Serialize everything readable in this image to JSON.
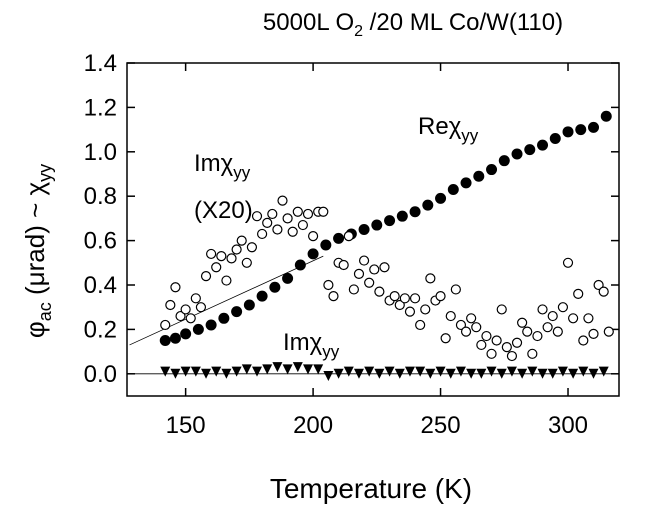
{
  "chart_data": {
    "type": "scatter",
    "title": {
      "main": "5000L O",
      "sub": "2",
      "rest": " /20 ML Co/W(110)"
    },
    "xlabel": "Temperature (K)",
    "ylabel": {
      "phi": "φ",
      "phi_sub": "ac",
      "mid": " (μrad) ~ χ",
      "chi_sub": "yy"
    },
    "xlim": [
      127,
      320
    ],
    "ylim": [
      -0.1,
      1.4
    ],
    "xticks": [
      150,
      200,
      250,
      300
    ],
    "yticks": [
      0.0,
      0.2,
      0.4,
      0.6,
      0.8,
      1.0,
      1.2,
      1.4
    ],
    "xtick_labels": [
      "150",
      "200",
      "250",
      "300"
    ],
    "ytick_labels": [
      "0.0",
      "0.2",
      "0.4",
      "0.6",
      "0.8",
      "1.0",
      "1.2",
      "1.4"
    ],
    "annotations": {
      "re": {
        "prefix": "Re",
        "chi": "χ",
        "sub": "yy"
      },
      "im_x20": {
        "prefix": "Im",
        "chi": "χ",
        "sub": "yy",
        "line2": "(X20)"
      },
      "im": {
        "prefix": "Im",
        "chi": "χ",
        "sub": "yy"
      }
    },
    "reference_line": {
      "x": [
        128,
        204
      ],
      "y": [
        0.13,
        0.53
      ]
    },
    "zero_line": {
      "y": 0.0,
      "x": [
        127,
        320
      ]
    },
    "series": [
      {
        "name": "Re χyy",
        "marker": "filled-circle",
        "x": [
          142,
          146,
          150,
          155,
          160,
          165,
          170,
          175,
          180,
          185,
          190,
          195,
          200,
          205,
          210,
          215,
          220,
          225,
          230,
          235,
          240,
          245,
          250,
          255,
          260,
          265,
          270,
          275,
          280,
          285,
          290,
          295,
          300,
          305,
          310,
          315
        ],
        "y": [
          0.15,
          0.16,
          0.18,
          0.2,
          0.22,
          0.25,
          0.28,
          0.31,
          0.35,
          0.39,
          0.43,
          0.49,
          0.54,
          0.58,
          0.61,
          0.63,
          0.65,
          0.67,
          0.69,
          0.71,
          0.73,
          0.76,
          0.79,
          0.83,
          0.86,
          0.89,
          0.92,
          0.96,
          0.99,
          1.01,
          1.03,
          1.06,
          1.09,
          1.1,
          1.11,
          1.16
        ]
      },
      {
        "name": "Im χyy (X20)",
        "marker": "open-circle",
        "x": [
          142,
          144,
          146,
          148,
          150,
          152,
          154,
          156,
          158,
          160,
          162,
          164,
          166,
          168,
          170,
          172,
          174,
          176,
          178,
          180,
          182,
          184,
          186,
          188,
          190,
          192,
          194,
          196,
          198,
          200,
          202,
          204,
          206,
          208,
          210,
          212,
          214,
          216,
          218,
          220,
          222,
          224,
          226,
          228,
          230,
          232,
          234,
          236,
          238,
          240,
          242,
          244,
          246,
          248,
          250,
          252,
          254,
          256,
          258,
          260,
          262,
          264,
          266,
          268,
          270,
          272,
          274,
          276,
          278,
          280,
          282,
          284,
          286,
          288,
          290,
          292,
          294,
          296,
          298,
          300,
          302,
          304,
          306,
          308,
          310,
          312,
          314,
          316
        ],
        "y": [
          0.22,
          0.31,
          0.39,
          0.26,
          0.29,
          0.25,
          0.34,
          0.3,
          0.44,
          0.54,
          0.48,
          0.53,
          0.42,
          0.52,
          0.56,
          0.6,
          0.5,
          0.57,
          0.71,
          0.63,
          0.68,
          0.72,
          0.65,
          0.78,
          0.7,
          0.64,
          0.73,
          0.67,
          0.72,
          0.62,
          0.73,
          0.73,
          0.4,
          0.35,
          0.5,
          0.49,
          0.62,
          0.38,
          0.45,
          0.51,
          0.41,
          0.47,
          0.37,
          0.48,
          0.33,
          0.35,
          0.31,
          0.34,
          0.28,
          0.34,
          0.22,
          0.29,
          0.43,
          0.33,
          0.35,
          0.16,
          0.26,
          0.38,
          0.22,
          0.19,
          0.25,
          0.21,
          0.13,
          0.17,
          0.09,
          0.15,
          0.29,
          0.12,
          0.08,
          0.14,
          0.23,
          0.19,
          0.09,
          0.17,
          0.29,
          0.21,
          0.26,
          0.19,
          0.3,
          0.5,
          0.25,
          0.36,
          0.15,
          0.25,
          0.18,
          0.4,
          0.37,
          0.19
        ]
      },
      {
        "name": "Im χyy",
        "marker": "filled-triangle-down",
        "x": [
          142,
          146,
          150,
          154,
          158,
          162,
          166,
          170,
          174,
          178,
          182,
          186,
          190,
          194,
          198,
          202,
          206,
          210,
          214,
          218,
          222,
          226,
          230,
          234,
          238,
          242,
          246,
          250,
          254,
          258,
          262,
          266,
          270,
          274,
          278,
          282,
          286,
          290,
          294,
          298,
          302,
          306,
          310,
          314
        ],
        "y": [
          0.01,
          0.0,
          0.01,
          0.01,
          0.0,
          0.01,
          0.0,
          0.01,
          0.02,
          0.01,
          0.02,
          0.03,
          0.02,
          0.03,
          0.02,
          0.02,
          -0.01,
          0.0,
          0.01,
          0.0,
          0.01,
          0.0,
          0.01,
          0.0,
          0.01,
          0.01,
          0.0,
          0.01,
          0.0,
          0.01,
          0.0,
          0.0,
          0.01,
          0.0,
          0.01,
          0.0,
          0.01,
          0.0,
          0.0,
          0.01,
          0.0,
          0.01,
          0.0,
          0.01
        ]
      }
    ]
  }
}
